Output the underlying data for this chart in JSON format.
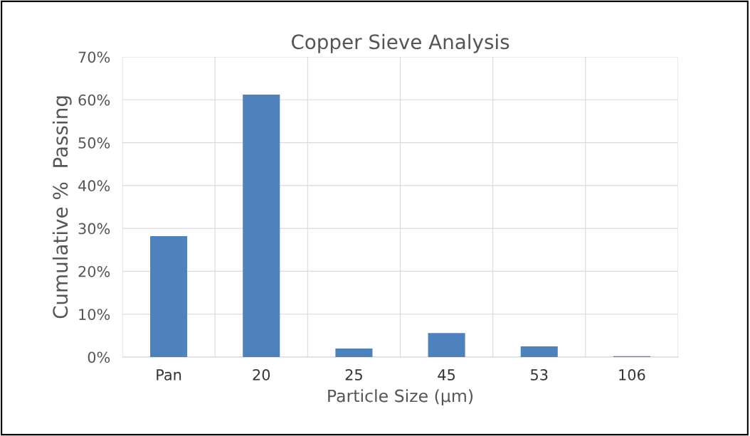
{
  "chart_data": {
    "type": "bar",
    "title": "Copper Sieve Analysis",
    "xlabel": "Particle Size (µm)",
    "ylabel": "Cumulative %  Passing",
    "categories": [
      "Pan",
      "20",
      "25",
      "45",
      "53",
      "106"
    ],
    "values": [
      28.2,
      61.2,
      2.0,
      5.6,
      2.5,
      0.2
    ],
    "color": "#4f81bd",
    "ylim": [
      0,
      70
    ],
    "yticks": [
      {
        "value": 0,
        "label": "0%"
      },
      {
        "value": 10,
        "label": "10%"
      },
      {
        "value": 20,
        "label": "20%"
      },
      {
        "value": 30,
        "label": "30%"
      },
      {
        "value": 40,
        "label": "40%"
      },
      {
        "value": 50,
        "label": "50%"
      },
      {
        "value": 60,
        "label": "60%"
      },
      {
        "value": 70,
        "label": "70%"
      }
    ],
    "grid": true
  }
}
